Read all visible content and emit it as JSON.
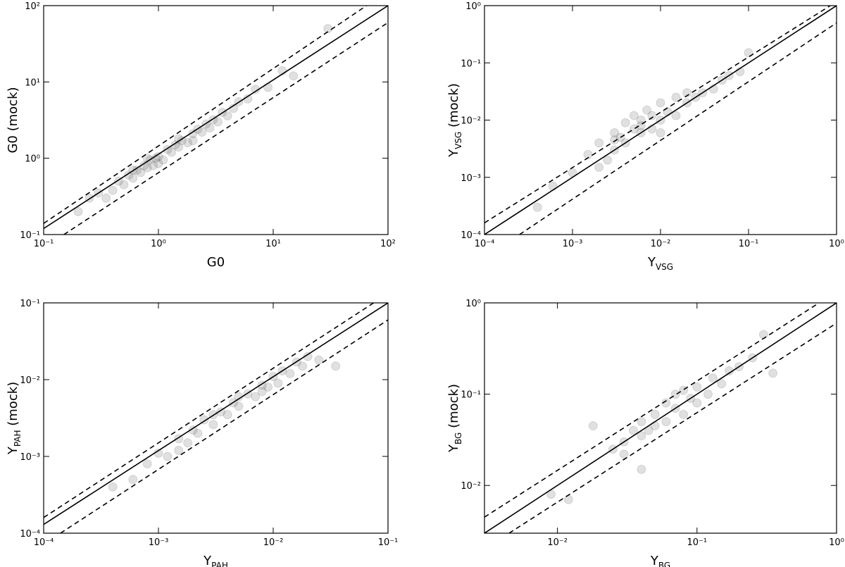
{
  "chart_data": [
    {
      "type": "scatter",
      "xlabel": "G0",
      "ylabel": "G0 (mock)",
      "log": true,
      "color": "#555555",
      "alpha": 0.18,
      "xlim": [
        0.1,
        100
      ],
      "ylim": [
        0.1,
        100
      ],
      "xticks": [
        {
          "value": 0.1,
          "label": "10⁻¹"
        },
        {
          "value": 1,
          "label": "10⁰"
        },
        {
          "value": 10,
          "label": "10¹"
        },
        {
          "value": 100,
          "label": "10²"
        }
      ],
      "yticks": [
        {
          "value": 0.1,
          "label": "10⁻¹"
        },
        {
          "value": 1,
          "label": "10⁰"
        },
        {
          "value": 10,
          "label": "10¹"
        },
        {
          "value": 100,
          "label": "10²"
        }
      ],
      "x": [
        0.2,
        0.25,
        0.3,
        0.35,
        0.4,
        0.45,
        0.5,
        0.55,
        0.6,
        0.65,
        0.7,
        0.75,
        0.8,
        0.85,
        0.9,
        0.95,
        1.0,
        1.1,
        1.2,
        1.3,
        1.4,
        1.5,
        1.6,
        1.8,
        2.0,
        2.2,
        2.4,
        2.6,
        2.8,
        3.0,
        3.3,
        3.6,
        4.0,
        4.5,
        5.0,
        6.0,
        7.0,
        9.0,
        12,
        15,
        30,
        0.8,
        1.0,
        1.5,
        2.0,
        0.6
      ],
      "y": [
        0.2,
        0.3,
        0.35,
        0.3,
        0.38,
        0.5,
        0.45,
        0.6,
        0.55,
        0.7,
        0.65,
        0.8,
        0.75,
        0.95,
        0.8,
        1.0,
        1.05,
        0.95,
        1.3,
        1.2,
        1.5,
        1.4,
        1.7,
        1.6,
        2.1,
        2.4,
        2.2,
        2.8,
        2.5,
        3.2,
        3.0,
        4.0,
        3.6,
        4.5,
        5.5,
        6.0,
        8.0,
        8.5,
        14,
        12,
        50,
        1.0,
        0.85,
        1.8,
        1.7,
        0.7
      ],
      "lines": [
        {
          "style": "solid",
          "x": [
            0.1,
            100
          ],
          "y": [
            0.12,
            100
          ]
        },
        {
          "style": "dashed",
          "x": [
            0.1,
            65
          ],
          "y": [
            0.14,
            100
          ]
        },
        {
          "style": "dashed",
          "x": [
            0.15,
            100
          ],
          "y": [
            0.1,
            60
          ]
        }
      ]
    },
    {
      "type": "scatter",
      "xlabel": {
        "text": "Y",
        "sub": "VSG"
      },
      "ylabel": {
        "text": "Y",
        "sub": "VSG",
        "suffix": " (mock)"
      },
      "log": true,
      "color": "#555555",
      "alpha": 0.18,
      "xlim": [
        0.0001,
        1
      ],
      "ylim": [
        0.0001,
        1
      ],
      "xticks": [
        {
          "value": 0.0001,
          "label": "10⁻⁴"
        },
        {
          "value": 0.001,
          "label": "10⁻³"
        },
        {
          "value": 0.01,
          "label": "10⁻²"
        },
        {
          "value": 0.1,
          "label": "10⁻¹"
        },
        {
          "value": 1,
          "label": "10⁰"
        }
      ],
      "yticks": [
        {
          "value": 0.0001,
          "label": "10⁻⁴"
        },
        {
          "value": 0.001,
          "label": "10⁻³"
        },
        {
          "value": 0.01,
          "label": "10⁻²"
        },
        {
          "value": 0.1,
          "label": "10⁻¹"
        },
        {
          "value": 1,
          "label": "10⁰"
        }
      ],
      "x": [
        0.0004,
        0.0006,
        0.001,
        0.0015,
        0.002,
        0.0025,
        0.003,
        0.003,
        0.0035,
        0.004,
        0.004,
        0.005,
        0.005,
        0.006,
        0.006,
        0.007,
        0.008,
        0.008,
        0.01,
        0.01,
        0.012,
        0.015,
        0.015,
        0.02,
        0.02,
        0.025,
        0.03,
        0.04,
        0.05,
        0.06,
        0.08,
        0.1,
        0.002,
        0.003,
        0.006,
        0.01
      ],
      "y": [
        0.0003,
        0.0007,
        0.0012,
        0.0025,
        0.004,
        0.002,
        0.006,
        0.003,
        0.005,
        0.009,
        0.004,
        0.007,
        0.012,
        0.006,
        0.01,
        0.015,
        0.007,
        0.012,
        0.01,
        0.02,
        0.014,
        0.012,
        0.025,
        0.02,
        0.03,
        0.025,
        0.03,
        0.035,
        0.05,
        0.06,
        0.07,
        0.15,
        0.0015,
        0.0045,
        0.008,
        0.006
      ],
      "lines": [
        {
          "style": "solid",
          "x": [
            0.0001,
            1
          ],
          "y": [
            0.0001,
            1
          ]
        },
        {
          "style": "dashed",
          "x": [
            0.0001,
            0.85
          ],
          "y": [
            0.00016,
            1
          ]
        },
        {
          "style": "dashed",
          "x": [
            0.00025,
            1
          ],
          "y": [
            0.0001,
            0.5
          ]
        }
      ]
    },
    {
      "type": "scatter",
      "xlabel": {
        "text": "Y",
        "sub": "PAH"
      },
      "ylabel": {
        "text": "Y",
        "sub": "PAH",
        "suffix": " (mock)"
      },
      "log": true,
      "color": "#555555",
      "alpha": 0.18,
      "xlim": [
        0.0001,
        0.1
      ],
      "ylim": [
        0.0001,
        0.1
      ],
      "xticks": [
        {
          "value": 0.0001,
          "label": "10⁻⁴"
        },
        {
          "value": 0.001,
          "label": "10⁻³"
        },
        {
          "value": 0.01,
          "label": "10⁻²"
        },
        {
          "value": 0.1,
          "label": "10⁻¹"
        }
      ],
      "yticks": [
        {
          "value": 0.0001,
          "label": "10⁻⁴"
        },
        {
          "value": 0.001,
          "label": "10⁻³"
        },
        {
          "value": 0.01,
          "label": "10⁻²"
        },
        {
          "value": 0.1,
          "label": "10⁻¹"
        }
      ],
      "x": [
        0.0004,
        0.0006,
        0.0008,
        0.001,
        0.0012,
        0.0015,
        0.0018,
        0.002,
        0.0022,
        0.0025,
        0.003,
        0.0035,
        0.004,
        0.0045,
        0.005,
        0.006,
        0.007,
        0.008,
        0.009,
        0.01,
        0.011,
        0.012,
        0.014,
        0.016,
        0.018,
        0.02,
        0.025,
        0.035,
        0.0015,
        0.003,
        0.005,
        0.008
      ],
      "y": [
        0.0004,
        0.0005,
        0.0008,
        0.0011,
        0.001,
        0.0017,
        0.0015,
        0.0022,
        0.002,
        0.003,
        0.0026,
        0.0038,
        0.0035,
        0.005,
        0.0045,
        0.0065,
        0.006,
        0.0085,
        0.008,
        0.011,
        0.009,
        0.013,
        0.012,
        0.017,
        0.015,
        0.02,
        0.018,
        0.015,
        0.0012,
        0.0035,
        0.006,
        0.007
      ],
      "lines": [
        {
          "style": "solid",
          "x": [
            0.0001,
            0.1
          ],
          "y": [
            0.00013,
            0.1
          ]
        },
        {
          "style": "dashed",
          "x": [
            0.0001,
            0.075
          ],
          "y": [
            0.00016,
            0.1
          ]
        },
        {
          "style": "dashed",
          "x": [
            0.00014,
            0.1
          ],
          "y": [
            0.0001,
            0.06
          ]
        }
      ]
    },
    {
      "type": "scatter",
      "xlabel": {
        "text": "Y",
        "sub": "BG"
      },
      "ylabel": {
        "text": "Y",
        "sub": "BG",
        "suffix": " (mock)"
      },
      "log": true,
      "color": "#555555",
      "alpha": 0.18,
      "xlim": [
        0.003,
        1
      ],
      "ylim": [
        0.003,
        1
      ],
      "xticks": [
        {
          "value": 0.01,
          "label": "10⁻²"
        },
        {
          "value": 0.1,
          "label": "10⁻¹"
        },
        {
          "value": 1,
          "label": "10⁰"
        }
      ],
      "yticks": [
        {
          "value": 0.01,
          "label": "10⁻²"
        },
        {
          "value": 0.1,
          "label": "10⁻¹"
        },
        {
          "value": 1,
          "label": "10⁰"
        }
      ],
      "x": [
        0.009,
        0.012,
        0.018,
        0.025,
        0.03,
        0.03,
        0.035,
        0.04,
        0.04,
        0.045,
        0.05,
        0.05,
        0.06,
        0.06,
        0.07,
        0.07,
        0.08,
        0.09,
        0.1,
        0.1,
        0.12,
        0.13,
        0.15,
        0.17,
        0.2,
        0.25,
        0.3,
        0.35,
        0.04,
        0.08
      ],
      "y": [
        0.008,
        0.007,
        0.045,
        0.025,
        0.03,
        0.022,
        0.04,
        0.035,
        0.05,
        0.04,
        0.06,
        0.045,
        0.05,
        0.08,
        0.07,
        0.1,
        0.06,
        0.09,
        0.08,
        0.12,
        0.1,
        0.15,
        0.13,
        0.18,
        0.2,
        0.25,
        0.45,
        0.17,
        0.015,
        0.11
      ],
      "lines": [
        {
          "style": "solid",
          "x": [
            0.003,
            1
          ],
          "y": [
            0.003,
            1
          ]
        },
        {
          "style": "dashed",
          "x": [
            0.003,
            0.75
          ],
          "y": [
            0.0045,
            1
          ]
        },
        {
          "style": "dashed",
          "x": [
            0.0045,
            1
          ],
          "y": [
            0.003,
            0.6
          ]
        }
      ]
    }
  ]
}
